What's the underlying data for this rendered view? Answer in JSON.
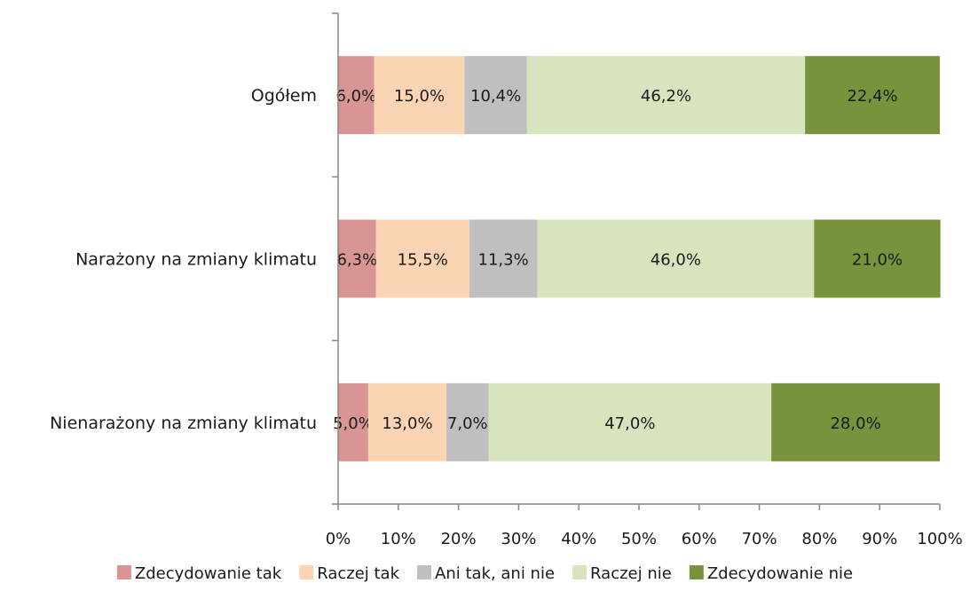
{
  "chart_data": {
    "type": "bar",
    "orientation": "horizontal",
    "stacked": "percent",
    "categories": [
      "Ogółem",
      "Narażony na zmiany klimatu",
      "Nienarażony na zmiany klimatu"
    ],
    "series": [
      {
        "name": "Zdecydowanie tak",
        "color": "#d99594",
        "values": [
          6.0,
          6.3,
          5.0
        ],
        "labels": [
          "6,0%",
          "6,3%",
          "5,0%"
        ]
      },
      {
        "name": "Raczej tak",
        "color": "#fbd4b4",
        "values": [
          15.0,
          15.5,
          13.0
        ],
        "labels": [
          "15,0%",
          "15,5%",
          "13,0%"
        ]
      },
      {
        "name": "Ani tak, ani nie",
        "color": "#bfbfbf",
        "values": [
          10.4,
          11.3,
          7.0
        ],
        "labels": [
          "10,4%",
          "11,3%",
          "7,0%"
        ]
      },
      {
        "name": "Raczej nie",
        "color": "#d7e4bd",
        "values": [
          46.2,
          46.0,
          47.0
        ],
        "labels": [
          "46,2%",
          "46,0%",
          "47,0%"
        ]
      },
      {
        "name": "Zdecydowanie nie",
        "color": "#77933c",
        "values": [
          22.4,
          21.0,
          28.0
        ],
        "labels": [
          "22,4%",
          "21,0%",
          "28,0%"
        ]
      }
    ],
    "xlim": [
      0,
      100
    ],
    "x_ticks": [
      "0%",
      "10%",
      "20%",
      "30%",
      "40%",
      "50%",
      "60%",
      "70%",
      "80%",
      "90%",
      "100%"
    ],
    "title": "",
    "xlabel": "",
    "ylabel": "",
    "grid": false,
    "legend_position": "bottom"
  }
}
